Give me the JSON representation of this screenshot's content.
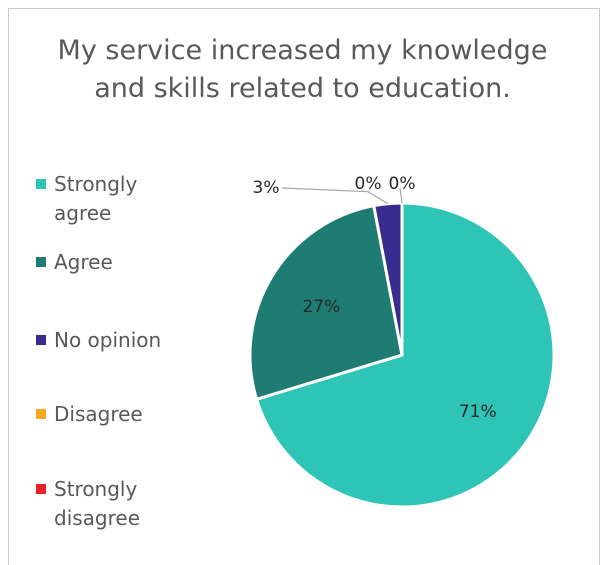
{
  "chart_data": {
    "type": "pie",
    "title": "My service increased my knowledge and skills related to education.",
    "categories": [
      "Strongly agree",
      "Agree",
      "No opinion",
      "Disagree",
      "Strongly disagree"
    ],
    "values": [
      71,
      27,
      3,
      0,
      0
    ],
    "data_labels": [
      "71%",
      "27%",
      "3%",
      "0%",
      "0%"
    ],
    "colors": [
      "#2ec4b6",
      "#1f7c72",
      "#3a2b8f",
      "#f5a623",
      "#e8202a"
    ],
    "legend_position": "left",
    "legend_labels": [
      [
        "Strongly",
        "agree"
      ],
      [
        "Agree"
      ],
      [
        "No opinion"
      ],
      [
        "Disagree"
      ],
      [
        "Strongly",
        "disagree"
      ]
    ]
  }
}
